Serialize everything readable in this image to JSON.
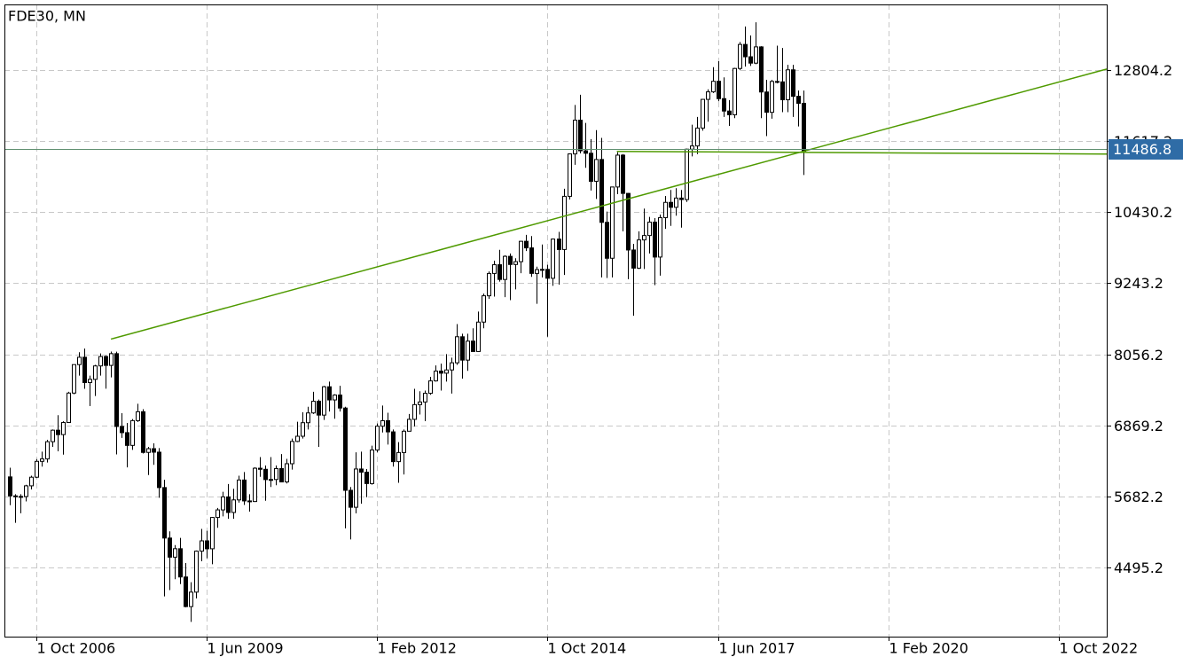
{
  "chart_data": {
    "type": "candlestick",
    "title": "FDE30, MN",
    "x": [
      "2006-05",
      "2006-06",
      "2006-07",
      "2006-08",
      "2006-09",
      "2006-10",
      "2006-11",
      "2006-12",
      "2007-01",
      "2007-02",
      "2007-03",
      "2007-04",
      "2007-05",
      "2007-06",
      "2007-07",
      "2007-08",
      "2007-09",
      "2007-10",
      "2007-11",
      "2007-12",
      "2008-01",
      "2008-02",
      "2008-03",
      "2008-04",
      "2008-05",
      "2008-06",
      "2008-07",
      "2008-08",
      "2008-09",
      "2008-10",
      "2008-11",
      "2008-12",
      "2009-01",
      "2009-02",
      "2009-03",
      "2009-04",
      "2009-05",
      "2009-06",
      "2009-07",
      "2009-08",
      "2009-09",
      "2009-10",
      "2009-11",
      "2009-12",
      "2010-01",
      "2010-02",
      "2010-03",
      "2010-04",
      "2010-05",
      "2010-06",
      "2010-07",
      "2010-08",
      "2010-09",
      "2010-10",
      "2010-11",
      "2010-12",
      "2011-01",
      "2011-02",
      "2011-03",
      "2011-04",
      "2011-05",
      "2011-06",
      "2011-07",
      "2011-08",
      "2011-09",
      "2011-10",
      "2011-11",
      "2011-12",
      "2012-01",
      "2012-02",
      "2012-03",
      "2012-04",
      "2012-05",
      "2012-06",
      "2012-07",
      "2012-08",
      "2012-09",
      "2012-10",
      "2012-11",
      "2012-12",
      "2013-01",
      "2013-02",
      "2013-03",
      "2013-04",
      "2013-05",
      "2013-06",
      "2013-07",
      "2013-08",
      "2013-09",
      "2013-10",
      "2013-11",
      "2013-12",
      "2014-01",
      "2014-02",
      "2014-03",
      "2014-04",
      "2014-05",
      "2014-06",
      "2014-07",
      "2014-08",
      "2014-09",
      "2014-10",
      "2014-11",
      "2014-12",
      "2015-01",
      "2015-02",
      "2015-03",
      "2015-04",
      "2015-05",
      "2015-06",
      "2015-07",
      "2015-08",
      "2015-09",
      "2015-10",
      "2015-11",
      "2015-12",
      "2016-01",
      "2016-02",
      "2016-03",
      "2016-04",
      "2016-05",
      "2016-06",
      "2016-07",
      "2016-08",
      "2016-09",
      "2016-10",
      "2016-11",
      "2016-12",
      "2017-01",
      "2017-02",
      "2017-03",
      "2017-04",
      "2017-05",
      "2017-06",
      "2017-07",
      "2017-08",
      "2017-09",
      "2017-10",
      "2017-11",
      "2017-12",
      "2018-01",
      "2018-02",
      "2018-03",
      "2018-04",
      "2018-05",
      "2018-06",
      "2018-07",
      "2018-08",
      "2018-09",
      "2018-10"
    ],
    "open": [
      6009,
      5692,
      5683,
      5681,
      5860,
      6004,
      6269,
      6309,
      6597,
      6789,
      6715,
      6917,
      7409,
      7884,
      8007,
      7584,
      7638,
      7862,
      8019,
      7871,
      8067,
      6851,
      6748,
      6535,
      6949,
      7097,
      6418,
      6480,
      6422,
      5831,
      4988,
      4669,
      4810,
      4338,
      3844,
      4085,
      4770,
      4941,
      4809,
      5332,
      5458,
      5675,
      5415,
      5625,
      5957,
      5608,
      5598,
      6154,
      6136,
      5964,
      5966,
      6148,
      5925,
      6229,
      6601,
      6688,
      6914,
      7077,
      7273,
      7041,
      7514,
      7294,
      7376,
      7159,
      5785,
      5502,
      6141,
      6088,
      5898,
      6458,
      6856,
      6947,
      6761,
      6264,
      6416,
      6772,
      6970,
      7216,
      7260,
      7405,
      7612,
      7776,
      7741,
      7795,
      7914,
      8349,
      7959,
      8276,
      8103,
      8594,
      9033,
      9406,
      9552,
      9306,
      9692,
      9556,
      9603,
      9943,
      9833,
      9407,
      9470,
      9474,
      9326,
      9980,
      9806,
      10694,
      11402,
      11966,
      11454,
      11413,
      10945,
      11309,
      10259,
      9660,
      10850,
      11382,
      10743,
      9798,
      9495,
      9966,
      10039,
      10263,
      9680,
      10337,
      10593,
      10511,
      10665,
      10640,
      11481,
      11535,
      11834,
      12313,
      12438,
      12615,
      12325,
      12118,
      12056,
      12829,
      13230,
      13024,
      12918,
      13189,
      12436,
      12097,
      12612,
      12605,
      12306,
      12806,
      12364,
      12247
    ],
    "high": [
      6162,
      5720,
      5720,
      5878,
      6030,
      6306,
      6430,
      6629,
      6800,
      7040,
      6938,
      7430,
      7886,
      8090,
      8151,
      7700,
      7880,
      8070,
      8037,
      8101,
      8100,
      7072,
      6910,
      6975,
      7231,
      7140,
      6510,
      6570,
      6490,
      5960,
      5100,
      4870,
      4990,
      4570,
      4250,
      4780,
      5140,
      5110,
      5340,
      5490,
      5760,
      5890,
      5810,
      6030,
      6090,
      5720,
      6170,
      6340,
      6200,
      6340,
      6200,
      6390,
      6310,
      6650,
      6930,
      7090,
      7180,
      7430,
      7300,
      7530,
      7600,
      7390,
      7530,
      7180,
      5840,
      6420,
      6430,
      6140,
      6530,
      6900,
      7200,
      7080,
      6800,
      6590,
      6800,
      7060,
      7480,
      7440,
      7450,
      7680,
      7870,
      7900,
      8060,
      8000,
      8560,
      8400,
      8400,
      8490,
      8770,
      9070,
      9440,
      9620,
      9800,
      9710,
      9740,
      9660,
      9950,
      10050,
      10030,
      9520,
      9890,
      9550,
      9990,
      10100,
      10820,
      11410,
      12220,
      12390,
      11920,
      11650,
      11800,
      11670,
      10440,
      10850,
      11430,
      11400,
      10750,
      9900,
      10110,
      10490,
      10350,
      10330,
      10390,
      10700,
      10800,
      10830,
      10800,
      11490,
      11890,
      12020,
      12320,
      12480,
      12850,
      12950,
      12680,
      12300,
      12840,
      13270,
      13530,
      13380,
      13600,
      13200,
      12640,
      12640,
      13210,
      13170,
      12890,
      12890,
      12460,
      12460
    ],
    "low": [
      5537,
      5243,
      5402,
      5600,
      5800,
      5990,
      6180,
      6250,
      6510,
      6437,
      6380,
      6910,
      7390,
      7700,
      7480,
      7192,
      7360,
      7700,
      7482,
      7670,
      6384,
      6660,
      6167,
      6460,
      6925,
      6400,
      6040,
      6210,
      5660,
      4014,
      4120,
      4300,
      4220,
      3830,
      3588,
      3980,
      4600,
      4650,
      4550,
      5160,
      5350,
      5310,
      5310,
      5580,
      5540,
      5430,
      5590,
      6010,
      5610,
      5840,
      5870,
      5920,
      5900,
      6130,
      6590,
      6650,
      6800,
      7060,
      6510,
      6960,
      7100,
      6980,
      7100,
      5150,
      4965,
      5400,
      5560,
      5670,
      5880,
      6420,
      6750,
      6550,
      6180,
      5910,
      6050,
      6770,
      6850,
      7050,
      6940,
      7380,
      7600,
      7450,
      7600,
      7400,
      7880,
      7650,
      7780,
      8100,
      8100,
      8490,
      8980,
      9020,
      9270,
      9010,
      8960,
      9140,
      9410,
      9780,
      9350,
      8900,
      9340,
      8350,
      9200,
      9220,
      9380,
      10640,
      11220,
      11410,
      11170,
      10790,
      10650,
      9340,
      9330,
      9340,
      10730,
      10110,
      9310,
      8700,
      9480,
      9480,
      9740,
      9210,
      9370,
      10150,
      10200,
      10370,
      10170,
      10600,
      11360,
      11400,
      11790,
      11940,
      12420,
      12280,
      12020,
      11870,
      12000,
      12800,
      12860,
      12870,
      12900,
      12000,
      11700,
      11990,
      12580,
      12100,
      12100,
      12020,
      11860,
      11050
    ],
    "close": [
      5692,
      5683,
      5681,
      5860,
      6004,
      6269,
      6309,
      6597,
      6789,
      6715,
      6917,
      7409,
      7884,
      8007,
      7584,
      7638,
      7862,
      8019,
      7871,
      8067,
      6851,
      6748,
      6535,
      6949,
      7097,
      6418,
      6480,
      6422,
      5831,
      4988,
      4669,
      4810,
      4338,
      3844,
      4085,
      4770,
      4941,
      4809,
      5332,
      5458,
      5675,
      5415,
      5625,
      5957,
      5608,
      5598,
      6154,
      6136,
      5964,
      5966,
      6148,
      5925,
      6229,
      6601,
      6688,
      6914,
      7077,
      7273,
      7041,
      7514,
      7294,
      7376,
      7159,
      5785,
      5502,
      6141,
      6088,
      5898,
      6458,
      6856,
      6947,
      6761,
      6264,
      6416,
      6772,
      6970,
      7216,
      7260,
      7405,
      7612,
      7776,
      7741,
      7795,
      7914,
      8349,
      7959,
      8276,
      8103,
      8594,
      9033,
      9406,
      9552,
      9306,
      9692,
      9556,
      9603,
      9943,
      9833,
      9407,
      9470,
      9474,
      9326,
      9980,
      9806,
      10694,
      11402,
      11966,
      11454,
      11413,
      10945,
      11309,
      10259,
      9660,
      10850,
      11382,
      10743,
      9798,
      9495,
      9966,
      10039,
      10263,
      9680,
      10337,
      10593,
      10511,
      10665,
      10640,
      11481,
      11535,
      11834,
      12313,
      12438,
      12615,
      12325,
      12118,
      12056,
      12829,
      13230,
      13024,
      12918,
      13189,
      12436,
      12097,
      12612,
      12605,
      12306,
      12806,
      12364,
      12247,
      11447
    ],
    "xlim": [
      "2006-04",
      "2023-07"
    ],
    "xticks": [
      {
        "value": "2006-10",
        "label": "1 Oct 2006"
      },
      {
        "value": "2009-06",
        "label": "1 Jun 2009"
      },
      {
        "value": "2012-02",
        "label": "1 Feb 2012"
      },
      {
        "value": "2014-10",
        "label": "1 Oct 2014"
      },
      {
        "value": "2017-06",
        "label": "1 Jun 2017"
      },
      {
        "value": "2020-02",
        "label": "1 Feb 2020"
      },
      {
        "value": "2022-10",
        "label": "1 Oct 2022"
      }
    ],
    "ylim": [
      3342,
      13898
    ],
    "yticks": [
      4495.2,
      5682.2,
      6869.2,
      8056.2,
      9243.2,
      10430.2,
      11617.2,
      12804.2
    ],
    "grid": true,
    "up_color": "#ffffff",
    "down_color": "#000000",
    "current_price": 11486.8,
    "price_line_color": "#5f8f6f",
    "price_tag_color": "#2f6ca6",
    "trendlines": [
      {
        "color": "#4f9a00",
        "start": {
          "x": "2007-12",
          "y": 8310
        },
        "end": {
          "x": "2023-07",
          "y": 12819
        }
      },
      {
        "color": "#4f9a00",
        "start": {
          "x": "2015-11",
          "y": 11444
        },
        "end": {
          "x": "2023-07",
          "y": 11400
        }
      }
    ]
  }
}
